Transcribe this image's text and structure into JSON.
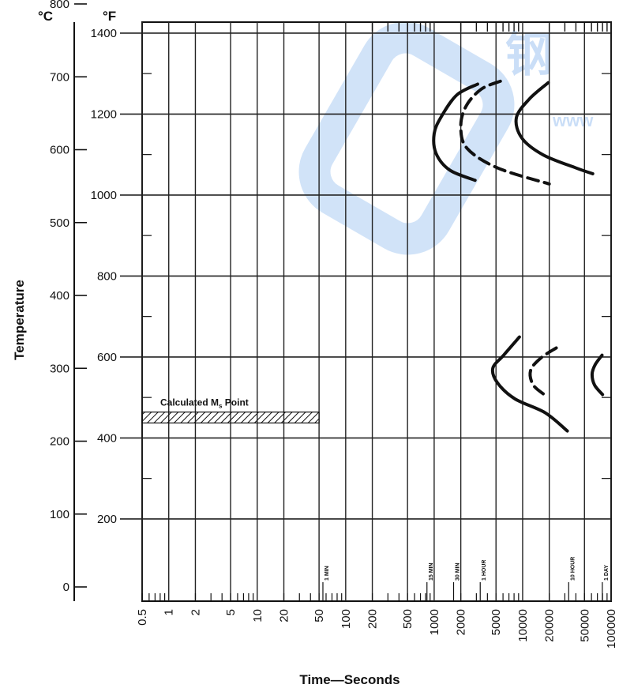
{
  "chart_data": {
    "type": "line",
    "xlabel": "Time—Seconds",
    "ylabel": "Temperature",
    "x_scale": "log",
    "xlim": [
      0.5,
      100000
    ],
    "ylim_c": [
      -15,
      870
    ],
    "x_ticks": [
      "0.5",
      "1",
      "2",
      "5",
      "10",
      "20",
      "50",
      "100",
      "200",
      "500",
      "1000",
      "2000",
      "5000",
      "10000",
      "20000",
      "50000",
      "100000"
    ],
    "y_ticks_c": [
      "0",
      "100",
      "200",
      "300",
      "400",
      "500",
      "600",
      "700",
      "800"
    ],
    "y_ticks_f": [
      "200",
      "400",
      "600",
      "800",
      "1000",
      "1200",
      "1400"
    ],
    "unit_c": "°C",
    "unit_f": "°F",
    "time_marks": [
      {
        "label": "1 MIN",
        "t": 60
      },
      {
        "label": "15 MIN",
        "t": 900
      },
      {
        "label": "30 MIN",
        "t": 1800
      },
      {
        "label": "1 HOUR",
        "t": 3600
      },
      {
        "label": "10 HOUR",
        "t": 36000
      },
      {
        "label": "1 DAY",
        "t": 86400
      }
    ],
    "ms_band": {
      "label_main": "Calculated M",
      "label_sub": "s",
      "label_end": " Point",
      "t_from": 0.5,
      "t_to": 50,
      "c_from": 225,
      "c_to": 240
    },
    "watermark_text": "钢",
    "watermark_url": "www",
    "series": [
      {
        "id": "upper-start-solid",
        "dash": false,
        "color": "#111111",
        "points": [
          [
            3100,
            690
          ],
          [
            1800,
            675
          ],
          [
            1200,
            645
          ],
          [
            1000,
            622
          ],
          [
            1050,
            595
          ],
          [
            1500,
            572
          ],
          [
            2900,
            558
          ]
        ]
      },
      {
        "id": "upper-start-dashed",
        "dash": true,
        "color": "#111111",
        "points": [
          [
            5600,
            694
          ],
          [
            3400,
            683
          ],
          [
            2300,
            660
          ],
          [
            2000,
            632
          ],
          [
            2350,
            602
          ],
          [
            5200,
            575
          ],
          [
            20000,
            553
          ]
        ]
      },
      {
        "id": "upper-end-solid",
        "dash": false,
        "color": "#111111",
        "points": [
          [
            19500,
            692
          ],
          [
            12000,
            670
          ],
          [
            8500,
            644
          ],
          [
            9800,
            616
          ],
          [
            17000,
            593
          ],
          [
            40000,
            575
          ],
          [
            62000,
            567
          ]
        ]
      },
      {
        "id": "lower-start-solid",
        "dash": false,
        "color": "#111111",
        "points": [
          [
            9200,
            343
          ],
          [
            6100,
            318
          ],
          [
            4600,
            300
          ],
          [
            5200,
            280
          ],
          [
            8200,
            258
          ],
          [
            18000,
            239
          ],
          [
            32000,
            214
          ]
        ]
      },
      {
        "id": "lower-end-dashed",
        "dash": true,
        "color": "#111111",
        "points": [
          [
            24000,
            328
          ],
          [
            16000,
            314
          ],
          [
            12300,
            297
          ],
          [
            13200,
            277
          ],
          [
            18500,
            262
          ]
        ]
      },
      {
        "id": "lower-solid-small",
        "dash": false,
        "color": "#111111",
        "points": [
          [
            79000,
            318
          ],
          [
            66000,
            305
          ],
          [
            61000,
            292
          ],
          [
            65000,
            277
          ],
          [
            80000,
            264
          ]
        ]
      }
    ]
  }
}
